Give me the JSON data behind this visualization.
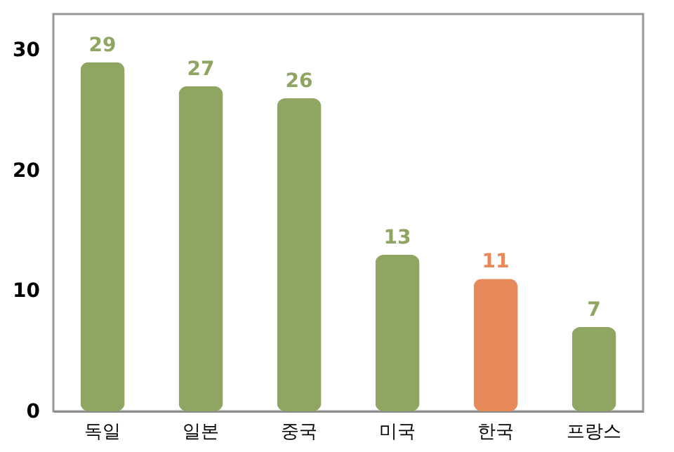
{
  "chart_data": {
    "type": "bar",
    "categories": [
      "독일",
      "일본",
      "중국",
      "미국",
      "한국",
      "프랑스"
    ],
    "values": [
      29,
      27,
      26,
      13,
      11,
      7
    ],
    "colors": [
      "#8fa562",
      "#8fa562",
      "#8fa562",
      "#8fa562",
      "#e8895a",
      "#8fa562"
    ],
    "ylim": [
      0,
      33
    ],
    "yticks": [
      0,
      10,
      20,
      30
    ],
    "grid": false,
    "data_labels": true
  }
}
